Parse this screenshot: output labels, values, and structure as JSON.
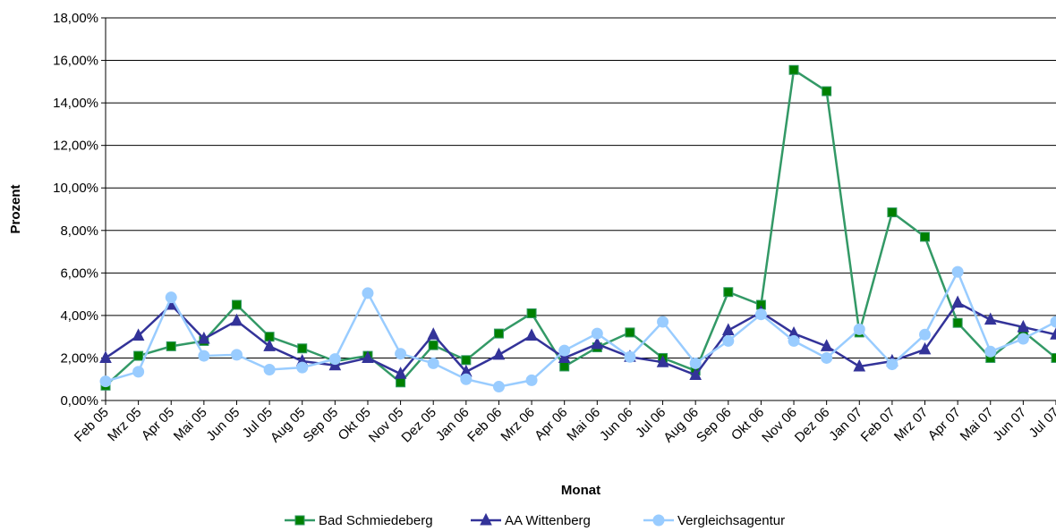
{
  "chart_data": {
    "type": "line",
    "y_label": "Prozent",
    "x_label": "Monat",
    "categories": [
      "Feb 05",
      "Mrz 05",
      "Apr 05",
      "Mai 05",
      "Jun 05",
      "Jul 05",
      "Aug 05",
      "Sep 05",
      "Okt 05",
      "Nov 05",
      "Dez 05",
      "Jan 06",
      "Feb 06",
      "Mrz 06",
      "Apr 06",
      "Mai 06",
      "Jun 06",
      "Jul 06",
      "Aug 06",
      "Sep 06",
      "Okt 06",
      "Nov 06",
      "Dez 06",
      "Jan 07",
      "Feb 07",
      "Mrz 07",
      "Apr 07",
      "Mai 07",
      "Jun 07",
      "Jul 07"
    ],
    "series": [
      {
        "name": "Bad Schmiedeberg",
        "color": "#339966",
        "marker_color": "#008000",
        "marker": "square",
        "values": [
          0.7,
          2.1,
          2.55,
          2.8,
          4.5,
          3.0,
          2.45,
          1.85,
          2.1,
          0.85,
          2.6,
          1.9,
          3.15,
          4.1,
          1.6,
          2.5,
          3.2,
          2.0,
          1.4,
          5.1,
          4.5,
          15.55,
          14.55,
          3.2,
          8.85,
          7.7,
          3.65,
          2.0,
          3.25,
          2.0
        ]
      },
      {
        "name": "AA Wittenberg",
        "color": "#333399",
        "marker_color": "#333399",
        "marker": "triangle",
        "values": [
          2.0,
          3.05,
          4.5,
          2.9,
          3.75,
          2.55,
          1.85,
          1.65,
          2.0,
          1.25,
          3.1,
          1.35,
          2.15,
          3.05,
          2.0,
          2.65,
          2.05,
          1.8,
          1.2,
          3.3,
          4.15,
          3.15,
          2.55,
          1.6,
          1.85,
          2.4,
          4.6,
          3.8,
          3.45,
          3.1
        ]
      },
      {
        "name": "Vergleichsagentur",
        "color": "#99ccff",
        "marker_color": "#99ccff",
        "marker": "circle",
        "values": [
          0.9,
          1.35,
          4.85,
          2.1,
          2.15,
          1.45,
          1.55,
          1.95,
          5.05,
          2.2,
          1.75,
          1.0,
          0.65,
          0.95,
          2.35,
          3.15,
          2.05,
          3.7,
          1.75,
          2.8,
          4.05,
          2.8,
          2.0,
          3.35,
          1.7,
          3.1,
          6.05,
          2.3,
          2.9,
          3.7
        ]
      }
    ],
    "ylim": [
      0,
      18
    ],
    "yticks": [
      {
        "value": 0,
        "label": "0,00%"
      },
      {
        "value": 2,
        "label": "2,00%"
      },
      {
        "value": 4,
        "label": "4,00%"
      },
      {
        "value": 6,
        "label": "6,00%"
      },
      {
        "value": 8,
        "label": "8,00%"
      },
      {
        "value": 10,
        "label": "10,00%"
      },
      {
        "value": 12,
        "label": "12,00%"
      },
      {
        "value": 14,
        "label": "14,00%"
      },
      {
        "value": 16,
        "label": "16,00%"
      },
      {
        "value": 18,
        "label": "18,00%"
      }
    ],
    "grid": true,
    "legend": "bottom"
  }
}
